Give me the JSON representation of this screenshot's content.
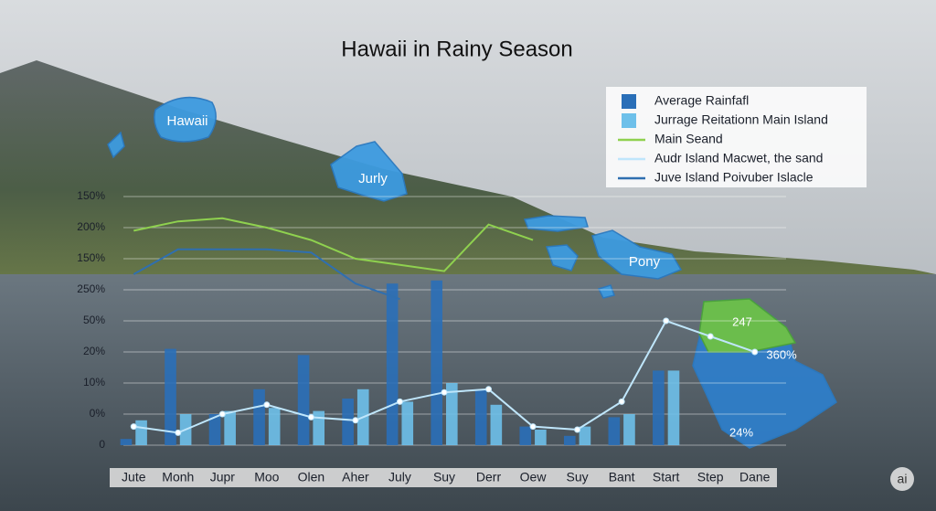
{
  "chart_data": {
    "type": "bar",
    "title": "Hawaii in Rainy Season",
    "categories": [
      "Jute",
      "Monh",
      "Jupr",
      "Moo",
      "Olen",
      "Aher",
      "July",
      "Suy",
      "Derr",
      "Oew",
      "Suy",
      "Bant",
      "Start",
      "Step",
      "Dane"
    ],
    "ylim": [
      0,
      8
    ],
    "yticks": [
      {
        "value": 0,
        "label": "0"
      },
      {
        "value": 1,
        "label": "0%"
      },
      {
        "value": 2,
        "label": "10%"
      },
      {
        "value": 3,
        "label": "20%"
      },
      {
        "value": 4,
        "label": "50%"
      },
      {
        "value": 5,
        "label": "250%"
      },
      {
        "value": 6,
        "label": "150%"
      },
      {
        "value": 7,
        "label": "200%"
      },
      {
        "value": 8,
        "label": "150%"
      }
    ],
    "grid": true,
    "series": [
      {
        "name": "Average Rainfafl",
        "kind": "bar",
        "color": "#2a6fb8",
        "values": [
          0.2,
          3.1,
          1.0,
          1.8,
          2.9,
          1.5,
          5.2,
          5.3,
          1.8,
          0.6,
          0.3,
          0.9,
          2.4,
          null,
          null
        ]
      },
      {
        "name": "Jurrage Reitationn Main Island",
        "kind": "bar",
        "color": "#6ec0ea",
        "values": [
          0.8,
          1.0,
          1.1,
          1.2,
          1.1,
          1.8,
          1.4,
          2.0,
          1.3,
          0.5,
          0.6,
          1.0,
          2.4,
          null,
          null
        ]
      },
      {
        "name": "Main Seand",
        "kind": "line",
        "color": "#8fd14f",
        "values": [
          6.9,
          7.2,
          7.3,
          7.0,
          6.6,
          6.0,
          5.8,
          5.6,
          7.1,
          6.6,
          null,
          null,
          null,
          null,
          null
        ]
      },
      {
        "name": "Audr Island Macwet, the sand",
        "kind": "line",
        "marker": true,
        "color": "#bfe6fb",
        "values": [
          0.6,
          0.4,
          1.0,
          1.3,
          0.9,
          0.8,
          1.4,
          1.7,
          1.8,
          0.6,
          0.5,
          1.4,
          4.0,
          3.5,
          3.0
        ]
      },
      {
        "name": "Juve Island Poivuber Islacle",
        "kind": "line",
        "color": "#2f6fb0",
        "values": [
          5.5,
          6.3,
          6.3,
          6.3,
          6.2,
          5.2,
          4.7,
          null,
          null,
          null,
          null,
          null,
          null,
          null,
          null
        ]
      }
    ],
    "annotations": [
      "Hawaii",
      "Jurly",
      "Pony",
      "247",
      "360%",
      "24%"
    ],
    "badge": "ai"
  }
}
